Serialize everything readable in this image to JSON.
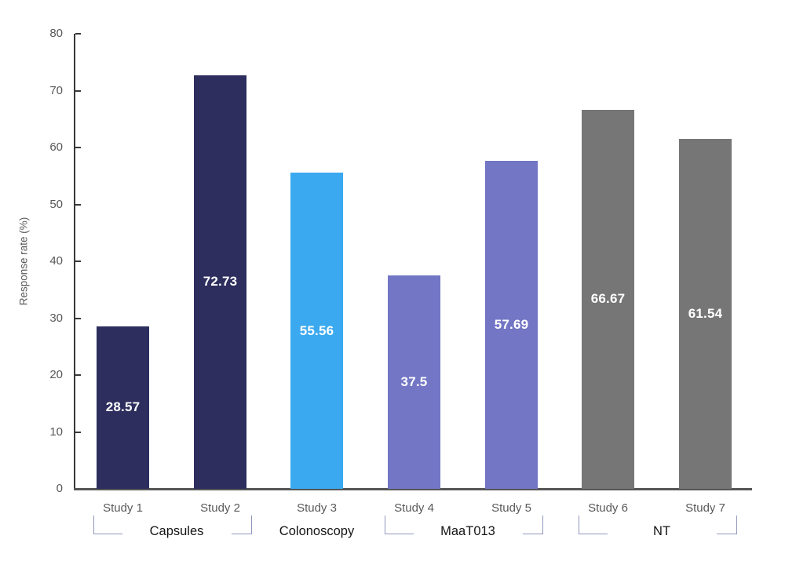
{
  "chart_data": {
    "type": "bar",
    "title": "",
    "xlabel": "",
    "ylabel": "Response rate (%)",
    "ylim": [
      0,
      80
    ],
    "yticks": [
      0,
      10,
      20,
      30,
      40,
      50,
      60,
      70,
      80
    ],
    "grid": false,
    "legend": "none",
    "categories": [
      "Study 1",
      "Study 2",
      "Study 3",
      "Study 4",
      "Study 5",
      "Study 6",
      "Study 7"
    ],
    "values": [
      28.57,
      72.73,
      55.56,
      37.5,
      57.69,
      66.67,
      61.54
    ],
    "value_labels": [
      "28.57",
      "72.73",
      "55.56",
      "37.5",
      "57.69",
      "66.67",
      "61.54"
    ],
    "bar_colors": [
      "#2d2e5e",
      "#2d2e5e",
      "#3aa9ef",
      "#7276c5",
      "#7276c5",
      "#767676",
      "#767676"
    ],
    "groups": [
      {
        "label": "Capsules",
        "start": 0,
        "end": 1,
        "bracket": true
      },
      {
        "label": "Colonoscopy",
        "start": 2,
        "end": 2,
        "bracket": false
      },
      {
        "label": "MaaT013",
        "start": 3,
        "end": 4,
        "bracket": true
      },
      {
        "label": "NT",
        "start": 5,
        "end": 6,
        "bracket": true
      }
    ],
    "colors": {
      "axis": "#383838",
      "baseline": "#565656",
      "tick_label": "#595959",
      "study_label": "#595959",
      "group_label": "#141414",
      "bracket": "#9097bd",
      "value_label": "#ffffff",
      "background": "#ffffff"
    }
  }
}
